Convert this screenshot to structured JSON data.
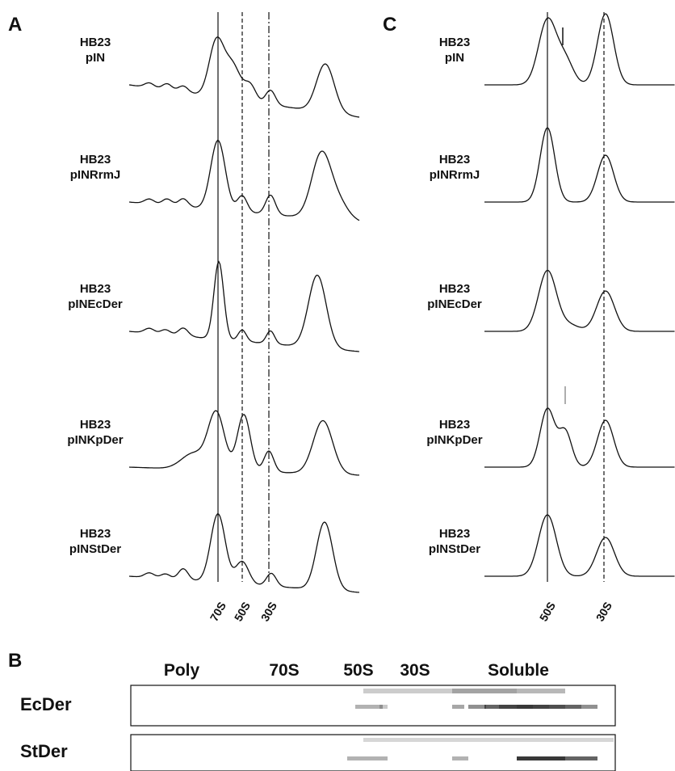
{
  "panel_a": {
    "label": "A",
    "samples": [
      {
        "strain": "HB23",
        "plasmid": "pIN"
      },
      {
        "strain": "HB23",
        "plasmid": "pINRrmJ"
      },
      {
        "strain": "HB23",
        "plasmid": "pINEcDer"
      },
      {
        "strain": "HB23",
        "plasmid": "pINKpDer"
      },
      {
        "strain": "HB23",
        "plasmid": "pINStDer"
      }
    ],
    "markers": [
      "70S",
      "50S",
      "30S"
    ]
  },
  "panel_c": {
    "label": "C",
    "samples": [
      {
        "strain": "HB23",
        "plasmid": "pIN"
      },
      {
        "strain": "HB23",
        "plasmid": "pINRrmJ"
      },
      {
        "strain": "HB23",
        "plasmid": "pINEcDer"
      },
      {
        "strain": "HB23",
        "plasmid": "pINKpDer"
      },
      {
        "strain": "HB23",
        "plasmid": "pINStDer"
      }
    ],
    "markers": [
      "50S",
      "30S"
    ]
  },
  "panel_b": {
    "label": "B",
    "fractions": [
      "Poly",
      "70S",
      "50S",
      "30S",
      "Soluble"
    ],
    "rows": [
      "EcDer",
      "StDer"
    ]
  }
}
